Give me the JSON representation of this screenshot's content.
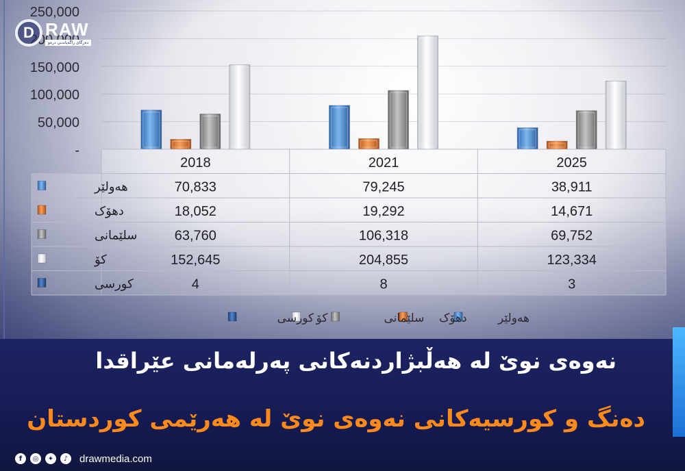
{
  "brand": {
    "logo_letter": "D",
    "logo_word": "RAW",
    "logo_tagline": "ده‌زگای راگه‌یاندنی درەو"
  },
  "headline": {
    "line1": "نەوەی نوێ لە هەڵبژاردنەکانی پەرلەمانی عێراقدا",
    "line2": "دەنگ و کورسیەکانی نەوەی نوێ لە هەرێمی کوردستان"
  },
  "footer": {
    "website": "drawmedia.com",
    "icons": [
      "facebook-icon",
      "instagram-icon",
      "twitter-icon",
      "tiktok-icon"
    ]
  },
  "chart_data": {
    "type": "bar",
    "categories": [
      "2018",
      "2021",
      "2025"
    ],
    "yticks": [
      "-",
      "50,000",
      "100,000",
      "150,000",
      "200,000",
      "250,000"
    ],
    "ylim": [
      0,
      250000
    ],
    "grid": true,
    "legend_position": "bottom",
    "series": [
      {
        "name": "هەولێر",
        "values": [
          70833,
          79245,
          38911
        ],
        "labels": [
          "70,833",
          "79,245",
          "38,911"
        ],
        "color": "#4a8fd6",
        "plotted": true
      },
      {
        "name": "دهۆک",
        "values": [
          18052,
          19292,
          14671
        ],
        "labels": [
          "18,052",
          "19,292",
          "14,671"
        ],
        "color": "#e0772a",
        "plotted": true
      },
      {
        "name": "سلێمانی",
        "values": [
          63760,
          106318,
          69752
        ],
        "labels": [
          "63,760",
          "106,318",
          "69,752"
        ],
        "color": "#9a9a9a",
        "plotted": true
      },
      {
        "name": "کۆ",
        "values": [
          152645,
          204855,
          123334
        ],
        "labels": [
          "152,645",
          "204,855",
          "123,334"
        ],
        "color": "#f2f2f2",
        "plotted": true
      },
      {
        "name": "کورسی",
        "values": [
          4,
          8,
          3
        ],
        "labels": [
          "4",
          "8",
          "3"
        ],
        "color": "#2f5ea8",
        "plotted": false
      }
    ]
  }
}
